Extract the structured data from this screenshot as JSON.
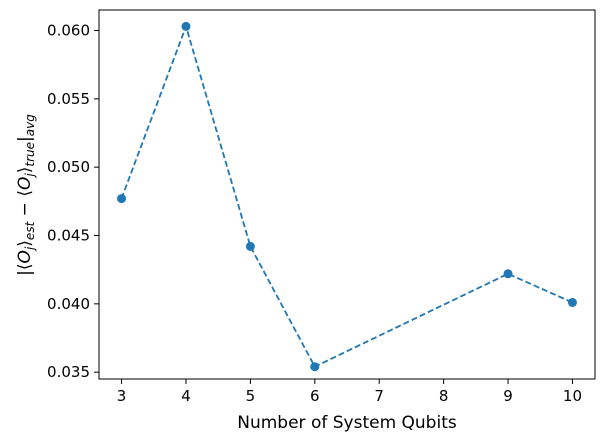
{
  "chart_data": {
    "type": "line",
    "title": "",
    "xlabel": "Number of System Qubits",
    "ylabel": "|⟨O_j⟩_est − ⟨O_j⟩_true|_avg",
    "ylabel_parts": {
      "bar": "|",
      "open_bracket": "⟨",
      "var": "O",
      "var_sub": "j",
      "close_bracket": "⟩",
      "est_sub": "est",
      "minus": " − ",
      "true_sub": "true",
      "avg_sub": "avg"
    },
    "x": [
      3,
      4,
      5,
      6,
      9,
      10
    ],
    "values": [
      0.0477,
      0.0603,
      0.0442,
      0.0354,
      0.0422,
      0.0401
    ],
    "xlim": [
      2.65,
      10.35
    ],
    "ylim": [
      0.0345,
      0.0615
    ],
    "xticks": [
      3,
      4,
      5,
      6,
      7,
      8,
      9,
      10
    ],
    "xtick_labels": [
      "3",
      "4",
      "5",
      "6",
      "7",
      "8",
      "9",
      "10"
    ],
    "yticks": [
      0.035,
      0.04,
      0.045,
      0.05,
      0.055,
      0.06
    ],
    "ytick_labels": [
      "0.035",
      "0.040",
      "0.045",
      "0.050",
      "0.055",
      "0.060"
    ],
    "line_style": "dashed",
    "marker": "circle",
    "color": "#1f77b4",
    "grid": false,
    "legend": "none"
  }
}
